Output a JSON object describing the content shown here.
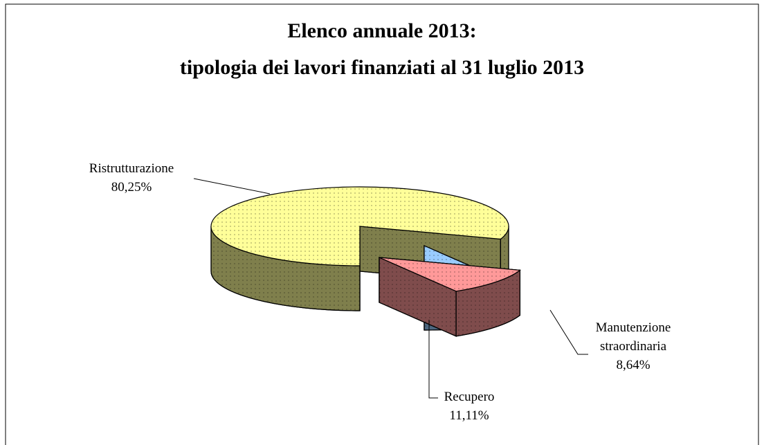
{
  "chart_data": {
    "type": "pie",
    "title": [
      "Elenco annuale 2013:",
      "tipologia dei lavori finanziati al 31 luglio 2013"
    ],
    "categories": [
      "Ristrutturazione",
      "Recupero",
      "Manutenzione straordinaria"
    ],
    "values": [
      80.25,
      11.11,
      8.64
    ],
    "value_labels": [
      "80,25%",
      "11,11%",
      "8,64%"
    ],
    "colors": [
      "#ffff99",
      "#ff9999",
      "#99ccff"
    ]
  }
}
